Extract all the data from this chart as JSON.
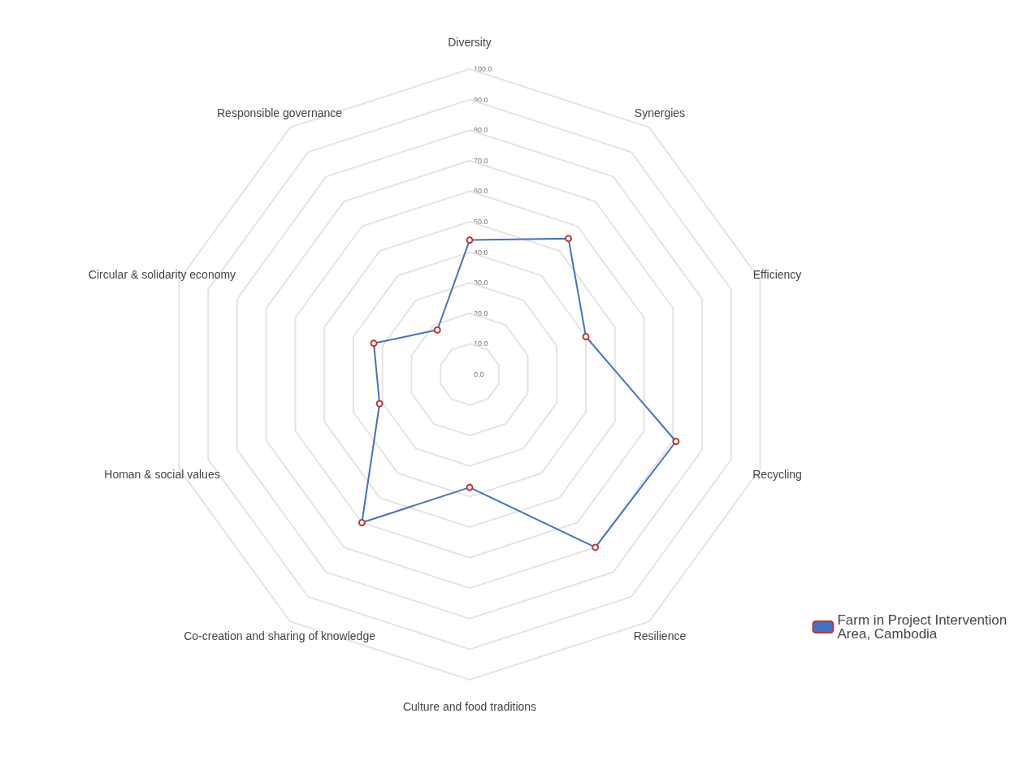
{
  "chart_data": {
    "type": "radar",
    "categories": [
      "Diversity",
      "Synergies",
      "Efficiency",
      "Recycling",
      "Resilience",
      "Culture and food traditions",
      "Co-creation and sharing of knowledge",
      "Homan & social values",
      "Circular & solidarity economy",
      "Responsible governance"
    ],
    "series": [
      {
        "name": "Farm in Project Intervention Area, Cambodia",
        "color": "#4472c4",
        "values": [
          44,
          55,
          40,
          71,
          70,
          37,
          60,
          31,
          33,
          18
        ]
      }
    ],
    "ylim": [
      0,
      100
    ],
    "yticks": [
      {
        "value": 0,
        "label": "0.0"
      },
      {
        "value": 10,
        "label": "10.0"
      },
      {
        "value": 20,
        "label": "20.0"
      },
      {
        "value": 30,
        "label": "30.0"
      },
      {
        "value": 40,
        "label": "40.0"
      },
      {
        "value": 50,
        "label": "50.0"
      },
      {
        "value": 60,
        "label": "60.0"
      },
      {
        "value": 70,
        "label": "70.0"
      },
      {
        "value": 80,
        "label": "80.0"
      },
      {
        "value": 90,
        "label": "90.0"
      },
      {
        "value": 100,
        "label": "100.0"
      }
    ],
    "marker": "circle",
    "legend": "right"
  }
}
